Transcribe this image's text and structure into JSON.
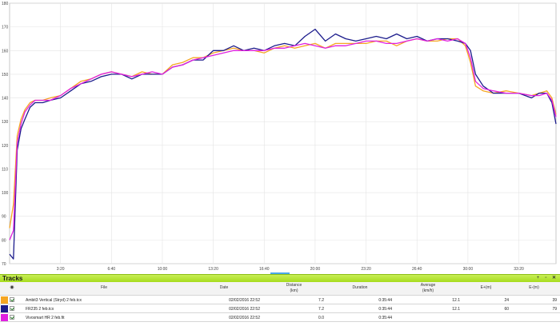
{
  "chart_data": {
    "type": "line",
    "title": "",
    "xlabel": "",
    "ylabel": "",
    "x_unit": "seconds",
    "xlim": [
      0,
      2146
    ],
    "ylim": [
      70,
      180
    ],
    "yticks": [
      70,
      80,
      90,
      100,
      110,
      120,
      130,
      140,
      150,
      160,
      170,
      180
    ],
    "xticks": [
      {
        "value": 200,
        "label": "3:20"
      },
      {
        "value": 400,
        "label": "6:40"
      },
      {
        "value": 600,
        "label": "10:00"
      },
      {
        "value": 800,
        "label": "13:20"
      },
      {
        "value": 1000,
        "label": "16:40"
      },
      {
        "value": 1200,
        "label": "20:00"
      },
      {
        "value": 1400,
        "label": "23:20"
      },
      {
        "value": 1600,
        "label": "26:40"
      },
      {
        "value": 1800,
        "label": "30:00"
      },
      {
        "value": 2000,
        "label": "33:20"
      }
    ],
    "grid": true,
    "series": [
      {
        "name": "Ambit3 Vertical (Stryd) 2 feb.tcx",
        "color": "#f5a623",
        "x": [
          0,
          15,
          30,
          45,
          60,
          80,
          100,
          130,
          160,
          200,
          240,
          280,
          320,
          360,
          400,
          440,
          480,
          520,
          560,
          600,
          640,
          680,
          720,
          760,
          800,
          840,
          880,
          920,
          960,
          1000,
          1040,
          1080,
          1120,
          1160,
          1200,
          1240,
          1280,
          1320,
          1360,
          1400,
          1440,
          1480,
          1520,
          1560,
          1600,
          1640,
          1680,
          1720,
          1760,
          1790,
          1810,
          1830,
          1860,
          1900,
          1950,
          2000,
          2050,
          2080,
          2110,
          2130,
          2146
        ],
        "y": [
          85,
          95,
          124,
          131,
          135,
          138,
          139,
          139,
          140,
          141,
          144,
          147,
          148,
          150,
          151,
          150,
          149,
          151,
          150,
          150,
          154,
          155,
          157,
          157,
          159,
          160,
          161,
          160,
          160,
          159,
          161,
          162,
          161,
          162,
          163,
          161,
          163,
          163,
          163,
          163,
          164,
          164,
          162,
          164,
          165,
          164,
          164,
          165,
          165,
          162,
          155,
          145,
          143,
          142,
          143,
          142,
          141,
          142,
          143,
          140,
          133
        ]
      },
      {
        "name": "FR235 2 feb.tcx",
        "color": "#1c1c8c",
        "x": [
          0,
          15,
          30,
          45,
          60,
          80,
          100,
          130,
          160,
          200,
          240,
          280,
          320,
          360,
          400,
          440,
          480,
          520,
          560,
          600,
          640,
          680,
          720,
          760,
          800,
          840,
          880,
          920,
          960,
          1000,
          1040,
          1080,
          1120,
          1160,
          1200,
          1240,
          1280,
          1320,
          1360,
          1400,
          1440,
          1480,
          1520,
          1560,
          1600,
          1640,
          1680,
          1720,
          1760,
          1790,
          1810,
          1830,
          1860,
          1900,
          1950,
          2000,
          2050,
          2080,
          2110,
          2130,
          2146
        ],
        "y": [
          74,
          72,
          118,
          127,
          131,
          136,
          138,
          138,
          139,
          140,
          143,
          146,
          147,
          149,
          150,
          150,
          148,
          150,
          150,
          150,
          153,
          154,
          156,
          156,
          160,
          160,
          162,
          160,
          161,
          160,
          162,
          163,
          162,
          166,
          169,
          164,
          167,
          165,
          164,
          165,
          166,
          165,
          167,
          165,
          166,
          164,
          165,
          165,
          164,
          163,
          160,
          150,
          145,
          142,
          142,
          142,
          140,
          142,
          142,
          138,
          129
        ]
      },
      {
        "name": "Vivosmart HR 2 feb.fit",
        "color": "#e020e0",
        "x": [
          0,
          15,
          30,
          45,
          60,
          80,
          100,
          130,
          160,
          200,
          240,
          280,
          320,
          360,
          400,
          440,
          480,
          520,
          560,
          600,
          640,
          680,
          720,
          760,
          800,
          840,
          880,
          920,
          960,
          1000,
          1040,
          1080,
          1120,
          1160,
          1200,
          1240,
          1280,
          1320,
          1360,
          1400,
          1440,
          1480,
          1520,
          1560,
          1600,
          1640,
          1680,
          1720,
          1760,
          1790,
          1810,
          1830,
          1860,
          1900,
          1950,
          2000,
          2050,
          2080,
          2110,
          2130,
          2146
        ],
        "y": [
          80,
          84,
          121,
          129,
          134,
          137,
          139,
          139,
          139,
          141,
          144,
          146,
          148,
          150,
          151,
          150,
          149,
          150,
          151,
          150,
          153,
          154,
          156,
          157,
          158,
          159,
          160,
          160,
          160,
          160,
          161,
          161,
          162,
          163,
          162,
          161,
          162,
          162,
          163,
          164,
          164,
          163,
          163,
          164,
          165,
          164,
          165,
          164,
          165,
          163,
          157,
          147,
          144,
          143,
          142,
          142,
          141,
          141,
          142,
          139,
          132
        ]
      }
    ]
  },
  "tracks_panel": {
    "title": "Tracks",
    "columns": {
      "file": "File",
      "date": "Date",
      "distance": "Distance",
      "distance_unit": "(km)",
      "duration": "Duration",
      "average": "Average",
      "average_unit": "(km/h)",
      "e_plus": "E+(m)",
      "e_minus": "E-(m)"
    },
    "rows": [
      {
        "color": "#f5a623",
        "file": "Ambit3 Vertical (Stryd) 2 feb.tcx",
        "date": "02/02/2016 22:52",
        "distance": "7.2",
        "duration": "0:35:44",
        "average": "12.1",
        "e_plus": "24",
        "e_minus": "39"
      },
      {
        "color": "#1c1c8c",
        "file": "FR235 2 feb.tcx",
        "date": "02/02/2016 22:52",
        "distance": "7.2",
        "duration": "0:35:44",
        "average": "12.1",
        "e_plus": "60",
        "e_minus": "79"
      },
      {
        "color": "#e020e0",
        "file": "Vivosmart HR 2 feb.fit",
        "date": "02/02/2016 22:52",
        "distance": "0.0",
        "duration": "0:35:44",
        "average": "",
        "e_plus": "",
        "e_minus": ""
      }
    ]
  },
  "icons": {
    "pin": "pin-icon",
    "float": "float-icon",
    "close": "close-icon",
    "visibility": "eye-icon"
  }
}
